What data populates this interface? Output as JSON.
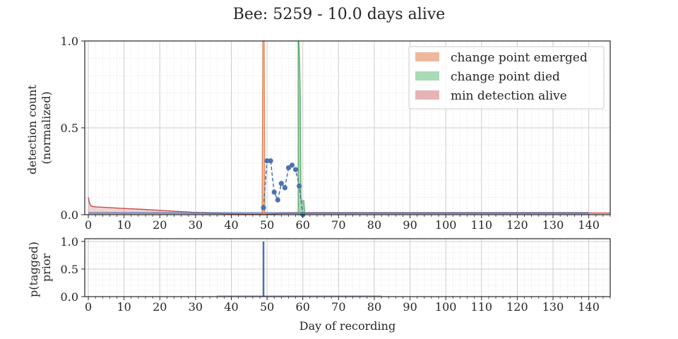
{
  "title": "Bee: 5259 - 10.0 days alive",
  "chart_data": [
    {
      "type": "line",
      "panel": "detections",
      "ylabel_lines": [
        "detection count",
        "(normalized)"
      ],
      "xlim": [
        -1,
        146
      ],
      "ylim": [
        0,
        1.0
      ],
      "xticks": [
        0,
        10,
        20,
        30,
        40,
        50,
        60,
        70,
        80,
        90,
        100,
        110,
        120,
        130,
        140
      ],
      "xtick_labels": [
        "0",
        "10",
        "20",
        "30",
        "40",
        "50",
        "60",
        "70",
        "80",
        "90",
        "100",
        "110",
        "120",
        "130",
        "140"
      ],
      "yticks": [
        0,
        0.5,
        1.0
      ],
      "ytick_labels": [
        "0.0",
        "0.5",
        "1.0"
      ],
      "grid": true,
      "legend_position": "top-right",
      "legend": [
        {
          "label": "change point emerged",
          "color": "#e8a07e"
        },
        {
          "label": "change point died",
          "color": "#8ccf9b"
        },
        {
          "label": "min detection alive",
          "color": "#de9a9f"
        }
      ],
      "detections": {
        "color": "#4c72b0",
        "x": [
          49,
          50,
          51,
          52,
          53,
          54,
          55,
          56,
          57,
          58,
          59,
          60
        ],
        "y": [
          0.04,
          0.31,
          0.31,
          0.13,
          0.085,
          0.18,
          0.155,
          0.27,
          0.285,
          0.26,
          0.165,
          0.0
        ]
      },
      "emerged_distribution": {
        "color": "#dd8452",
        "x": [
          48.6,
          48.8,
          49.0,
          49.2,
          49.4
        ],
        "y": [
          0.02,
          1.0,
          1.0,
          1.0,
          0.0
        ]
      },
      "died_distribution": {
        "color": "#55a868",
        "x": [
          58.7,
          58.9,
          59.1,
          59.3,
          59.5,
          59.7,
          60.0,
          60.3,
          60.6
        ],
        "y": [
          1.0,
          1.0,
          0.9,
          0.7,
          0.1,
          0.08,
          0.08,
          0.08,
          0.0
        ]
      },
      "min_detection_curve": {
        "color": "#c44e52",
        "x": [
          0,
          0.3,
          0.6,
          1,
          2,
          5,
          10,
          15,
          20,
          25,
          30,
          35,
          40,
          45,
          49,
          55,
          60,
          140,
          146
        ],
        "y": [
          0.1,
          0.07,
          0.055,
          0.048,
          0.045,
          0.042,
          0.036,
          0.031,
          0.025,
          0.019,
          0.013,
          0.008,
          0.005,
          0.003,
          0.002,
          0.008,
          0.01,
          0.01,
          0.01
        ]
      },
      "baseline_band": {
        "color": "#4c72b0",
        "x_range": [
          0,
          140
        ],
        "y": 0.01
      }
    },
    {
      "type": "bar",
      "panel": "prior",
      "ylabel_lines": [
        "p(tagged)",
        "prior"
      ],
      "xlabel": "Day of recording",
      "xlim": [
        -1,
        146
      ],
      "ylim": [
        0,
        1.05
      ],
      "xticks": [
        0,
        10,
        20,
        30,
        40,
        50,
        60,
        70,
        80,
        90,
        100,
        110,
        120,
        130,
        140
      ],
      "xtick_labels": [
        "0",
        "10",
        "20",
        "30",
        "40",
        "50",
        "60",
        "70",
        "80",
        "90",
        "100",
        "110",
        "120",
        "130",
        "140"
      ],
      "yticks": [
        0,
        0.5,
        1.0
      ],
      "ytick_labels": [
        "0.0",
        "0.5",
        "1.0"
      ],
      "grid": true,
      "color": "#4c72b0",
      "x": [
        49
      ],
      "values": [
        1.0
      ],
      "low_values_range": [
        36,
        82
      ],
      "low_value": 0.01
    }
  ]
}
